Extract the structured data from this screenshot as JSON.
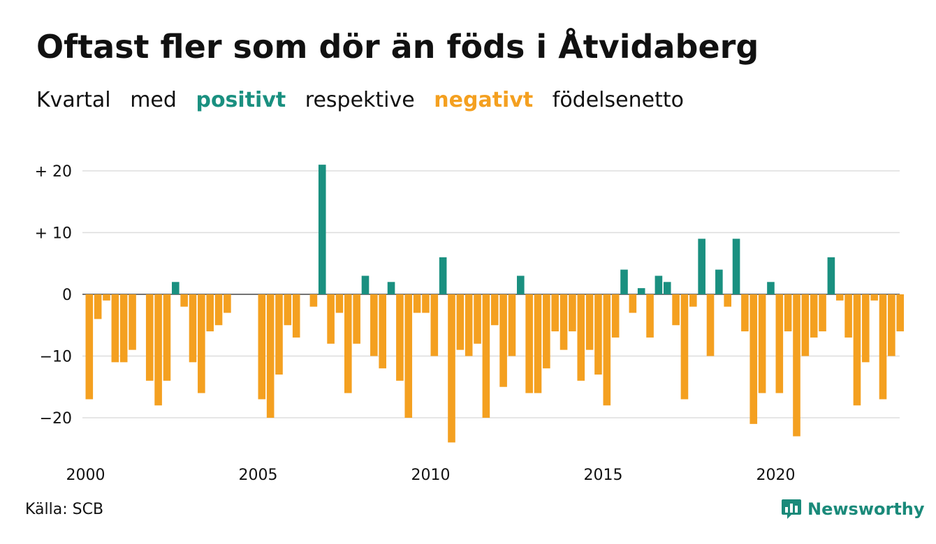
{
  "header": {
    "title": "Oftast fler som dör än föds i Åtvidaberg",
    "subtitle_parts": [
      "Kvartal",
      "med",
      "positivt",
      "respektive",
      "negativt",
      "födelsenetto"
    ]
  },
  "footer": {
    "source": "Källa: SCB",
    "brand": "Newsworthy",
    "brand_icon": "bar-chart-speech-icon"
  },
  "colors": {
    "positive": "#1a9080",
    "negative": "#f4a020",
    "grid": "#dddddd",
    "text": "#111111"
  },
  "chart_data": {
    "type": "bar",
    "title": "Oftast fler som dör än föds i Åtvidaberg",
    "subtitle": "Kvartal med positivt respektive negativt födelsenetto",
    "xlabel": "",
    "ylabel": "",
    "ylim": [
      -25,
      22
    ],
    "y_ticks": [
      {
        "value": 20,
        "label": "+ 20"
      },
      {
        "value": 10,
        "label": "+ 10"
      },
      {
        "value": 0,
        "label": "0"
      },
      {
        "value": -10,
        "label": "−10"
      },
      {
        "value": -20,
        "label": "−20"
      }
    ],
    "x_ticks": [
      "2000",
      "2005",
      "2010",
      "2015",
      "2020"
    ],
    "grid": true,
    "start": "2000 Q1",
    "frequency": "quarterly",
    "values": [
      -17,
      -4,
      -1,
      -11,
      -11,
      -9,
      0,
      -14,
      -18,
      -14,
      2,
      -2,
      -11,
      -16,
      -6,
      -5,
      -3,
      0,
      0,
      0,
      -17,
      -20,
      -13,
      -5,
      -7,
      0,
      -2,
      21,
      -8,
      -3,
      -16,
      -8,
      3,
      -10,
      -12,
      2,
      -14,
      -20,
      -3,
      -3,
      -10,
      6,
      -24,
      -9,
      -10,
      -8,
      -20,
      -5,
      -15,
      -10,
      3,
      -16,
      -16,
      -12,
      -6,
      -9,
      -6,
      -14,
      -9,
      -13,
      -18,
      -7,
      4,
      -3,
      1,
      -7,
      3,
      2,
      -5,
      -17,
      -2,
      9,
      -10,
      4,
      -2,
      9,
      -6,
      -21,
      -16,
      2,
      -16,
      -6,
      -23,
      -10,
      -7,
      -6,
      6,
      -1,
      -7,
      -18,
      -11,
      -1,
      -17,
      -10,
      -6
    ]
  }
}
